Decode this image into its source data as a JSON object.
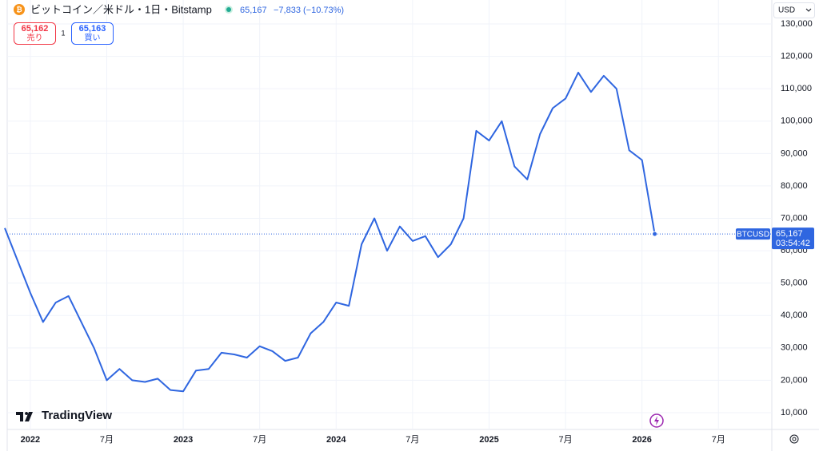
{
  "header": {
    "title": "ビットコイン／米ドル・1日・Bitstamp",
    "change": "−7,833 (−10.73%)",
    "sell_price": "65,162",
    "sell_label": "売り",
    "spread": "1",
    "buy_price": "65,163",
    "buy_label": "買い",
    "currency": "USD",
    "countdown": "03:54:42",
    "logo": "TradingView"
  },
  "chart_data": {
    "type": "line",
    "x": [
      "2021-11",
      "2021-12",
      "2022-01",
      "2022-02",
      "2022-03",
      "2022-04",
      "2022-05",
      "2022-06",
      "2022-07",
      "2022-08",
      "2022-09",
      "2022-10",
      "2022-11",
      "2022-12",
      "2023-01",
      "2023-02",
      "2023-03",
      "2023-04",
      "2023-05",
      "2023-06",
      "2023-07",
      "2023-08",
      "2023-09",
      "2023-10",
      "2023-11",
      "2023-12",
      "2024-01",
      "2024-02",
      "2024-03",
      "2024-04",
      "2024-05",
      "2024-06",
      "2024-07",
      "2024-08",
      "2024-09",
      "2024-10",
      "2024-11",
      "2024-12",
      "2025-01",
      "2025-02",
      "2025-03",
      "2025-04",
      "2025-05",
      "2025-06",
      "2025-07",
      "2025-08",
      "2025-09",
      "2025-10",
      "2025-11",
      "2025-12",
      "2026-01",
      "2026-02"
    ],
    "series": [
      {
        "name": "BTCUSD",
        "color": "#2f66e0",
        "values": [
          67000,
          57000,
          47000,
          38000,
          44000,
          46000,
          38000,
          30000,
          20000,
          23500,
          20000,
          19500,
          20500,
          17000,
          16600,
          23000,
          23500,
          28500,
          28000,
          27000,
          30500,
          29000,
          26000,
          27000,
          34500,
          38000,
          44000,
          43000,
          62000,
          70000,
          60000,
          67500,
          63000,
          64500,
          58000,
          62000,
          70000,
          97000,
          94000,
          100000,
          86000,
          82000,
          96000,
          104000,
          107000,
          115000,
          109000,
          114000,
          110000,
          91000,
          88000,
          65167
        ]
      }
    ],
    "last_price": {
      "value": 65167,
      "value_label": "65,167"
    },
    "xlim": [
      "2021-11",
      "2026-11"
    ],
    "xticks": [
      {
        "value": "2022-01",
        "label": "2022"
      },
      {
        "value": "2022-07",
        "label": "7月"
      },
      {
        "value": "2023-01",
        "label": "2023"
      },
      {
        "value": "2023-07",
        "label": "7月"
      },
      {
        "value": "2024-01",
        "label": "2024"
      },
      {
        "value": "2024-07",
        "label": "7月"
      },
      {
        "value": "2025-01",
        "label": "2025"
      },
      {
        "value": "2025-07",
        "label": "7月"
      },
      {
        "value": "2026-01",
        "label": "2026"
      },
      {
        "value": "2026-07",
        "label": "7月"
      }
    ],
    "ylim": [
      5000,
      132000
    ],
    "yticks": [
      {
        "value": 10000,
        "label": "10,000"
      },
      {
        "value": 20000,
        "label": "20,000"
      },
      {
        "value": 30000,
        "label": "30,000"
      },
      {
        "value": 40000,
        "label": "40,000"
      },
      {
        "value": 50000,
        "label": "50,000"
      },
      {
        "value": 60000,
        "label": "60,000"
      },
      {
        "value": 70000,
        "label": "70,000"
      },
      {
        "value": 80000,
        "label": "80,000"
      },
      {
        "value": 90000,
        "label": "90,000"
      },
      {
        "value": 100000,
        "label": "100,000"
      },
      {
        "value": 110000,
        "label": "110,000"
      },
      {
        "value": 120000,
        "label": "120,000"
      },
      {
        "value": 130000,
        "label": "130,000"
      }
    ],
    "grid": true
  }
}
